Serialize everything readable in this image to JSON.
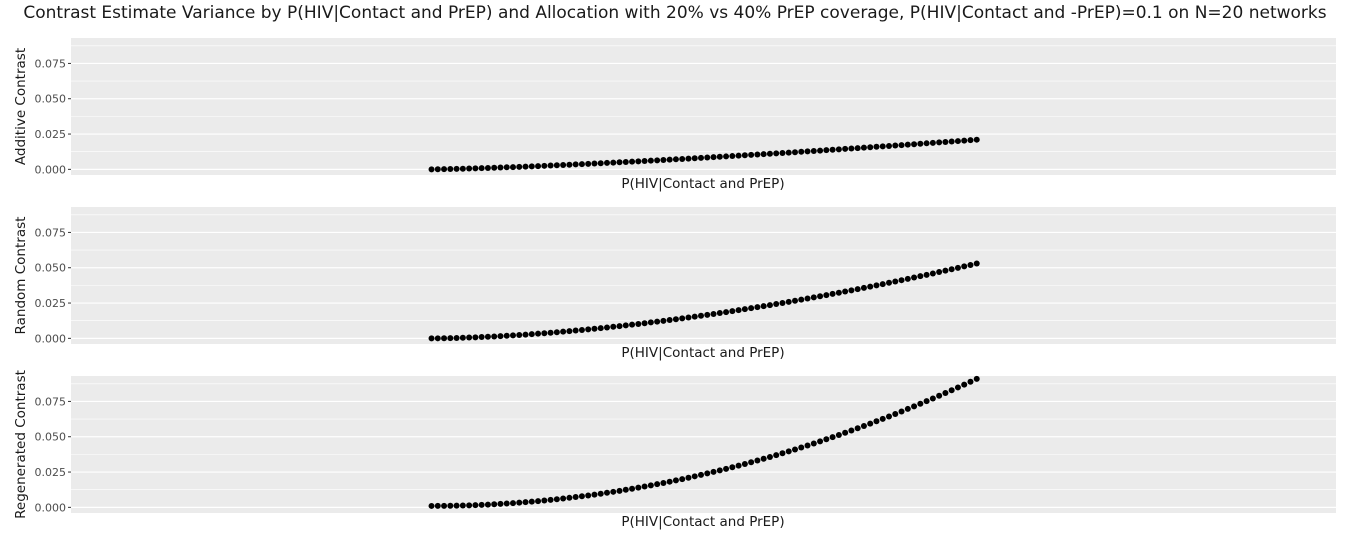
{
  "title": "Contrast Estimate Variance by P(HIV|Contact and PrEP) and Allocation with 20% vs 40% PrEP coverage, P(HIV|Contact and -PrEP)=0.1 on N=20 networks",
  "colors": {
    "panel_bg": "#ebebeb",
    "grid": "#ffffff",
    "point": "#000000",
    "tick": "#4d4d4d"
  },
  "chart_data": [
    {
      "type": "scatter",
      "xlabel": "P(HIV|Contact and PrEP)",
      "ylabel": "Additive Contrast",
      "grid": true,
      "ylim": [
        -0.004,
        0.093
      ],
      "xlim": [
        0,
        1
      ],
      "yticks": [
        0.0,
        0.025,
        0.05,
        0.075
      ],
      "ytick_labels": [
        "0.000",
        "0.025",
        "0.050",
        "0.075"
      ],
      "x": {
        "start": 0.285,
        "end": 0.716,
        "n": 88
      },
      "y": {
        "start": 0.0,
        "end": 0.021,
        "exponent": 1.35
      }
    },
    {
      "type": "scatter",
      "xlabel": "P(HIV|Contact and PrEP)",
      "ylabel": "Random Contrast",
      "grid": true,
      "ylim": [
        -0.004,
        0.093
      ],
      "xlim": [
        0,
        1
      ],
      "yticks": [
        0.0,
        0.025,
        0.05,
        0.075
      ],
      "ytick_labels": [
        "0.000",
        "0.025",
        "0.050",
        "0.075"
      ],
      "x": {
        "start": 0.285,
        "end": 0.716,
        "n": 88
      },
      "y": {
        "start": 0.0,
        "end": 0.053,
        "exponent": 1.7
      }
    },
    {
      "type": "scatter",
      "xlabel": "P(HIV|Contact and PrEP)",
      "ylabel": "Regenerated Contrast",
      "grid": true,
      "ylim": [
        -0.004,
        0.093
      ],
      "xlim": [
        0,
        1
      ],
      "yticks": [
        0.0,
        0.025,
        0.05,
        0.075
      ],
      "ytick_labels": [
        "0.000",
        "0.025",
        "0.050",
        "0.075"
      ],
      "x": {
        "start": 0.285,
        "end": 0.716,
        "n": 88
      },
      "y": {
        "start": 0.001,
        "end": 0.091,
        "exponent": 2.0
      }
    }
  ]
}
